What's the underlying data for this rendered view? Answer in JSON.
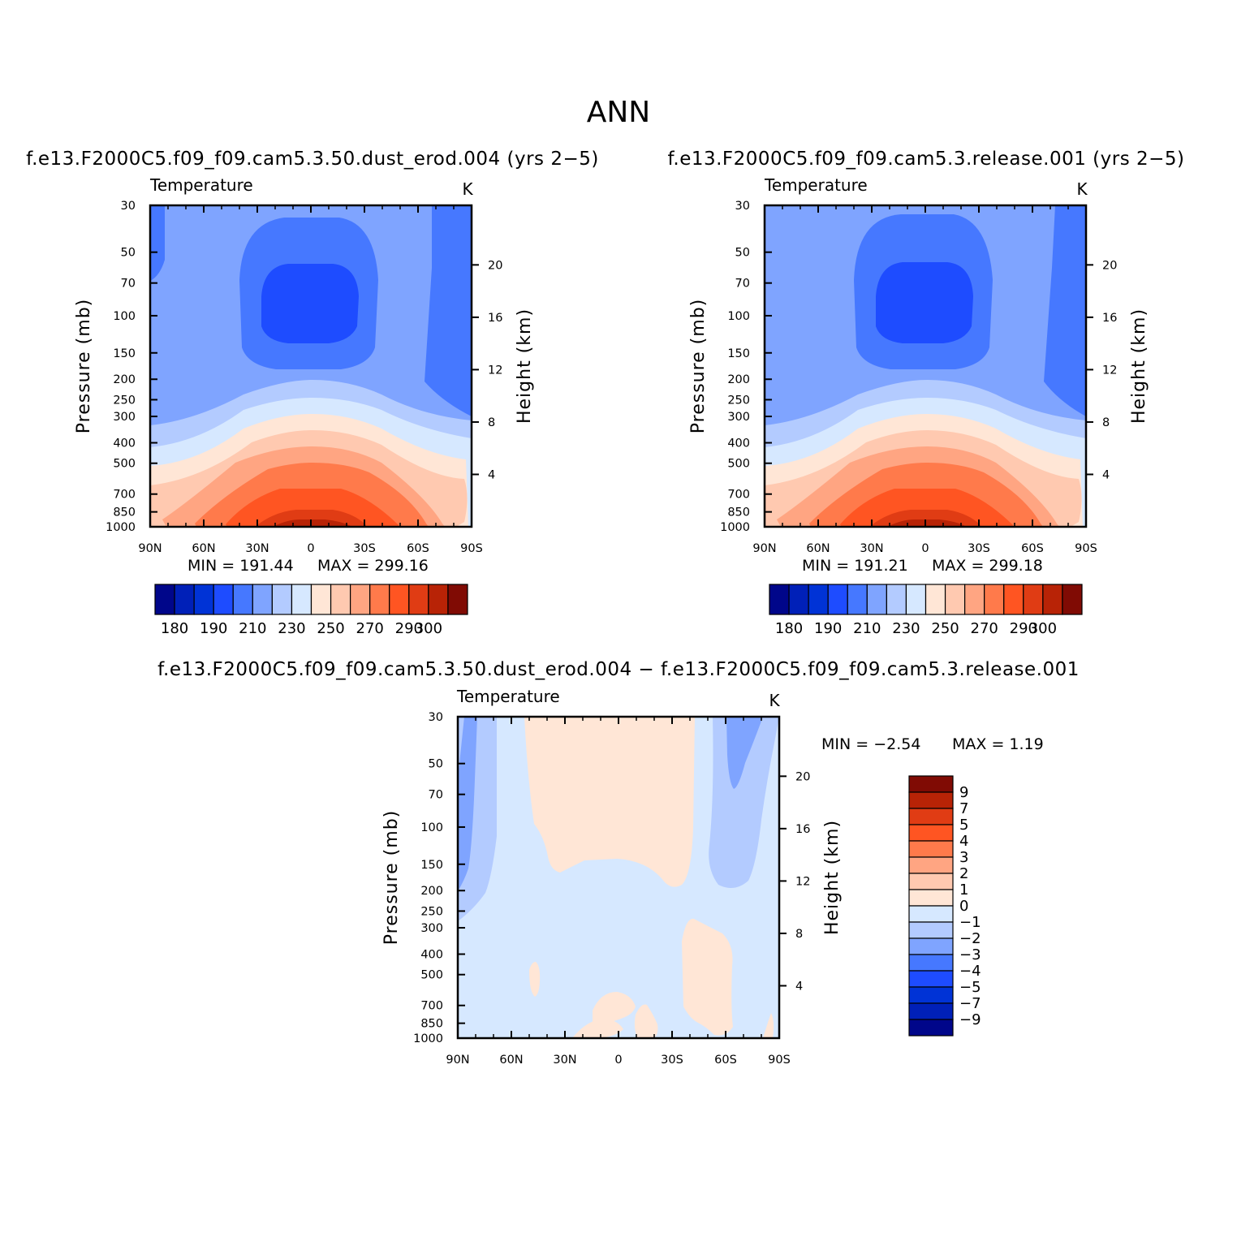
{
  "figure": {
    "title": "ANN",
    "colors": {
      "temperature_levels": [
        "#00068a",
        "#0020b8",
        "#0033d6",
        "#1e4cff",
        "#4678ff",
        "#7fa4ff",
        "#b3cbff",
        "#d6e8ff",
        "#ffe6d6",
        "#ffc9b0",
        "#ffa582",
        "#ff7a4b",
        "#ff5522",
        "#e03c14",
        "#b82306",
        "#800b04"
      ],
      "difference_levels": [
        "#00068a",
        "#0020b8",
        "#0033d6",
        "#1e4cff",
        "#4678ff",
        "#7fa4ff",
        "#b3cbff",
        "#d6e8ff",
        "#ffe6d6",
        "#ffc9b0",
        "#ffa582",
        "#ff7a4b",
        "#ff5522",
        "#e03c14",
        "#b82306",
        "#800b04"
      ]
    }
  },
  "chart_data": [
    {
      "type": "heatmap",
      "panel": "case",
      "subtitle": "f.e13.F2000C5.f09_f09.cam5.3.50.dust_erod.004  (yrs  2−5)",
      "variable": "Temperature",
      "units": "K",
      "ylabel": "Pressure  (mb)",
      "ylabel_right": "Height  (km)",
      "x_tick_labels": [
        "90N",
        "60N",
        "30N",
        "0",
        "30S",
        "60S",
        "90S"
      ],
      "x_ticks_lat": [
        90,
        60,
        30,
        0,
        -30,
        -60,
        -90
      ],
      "y_tick_labels": [
        "30",
        "50",
        "70",
        "100",
        "150",
        "200",
        "250",
        "300",
        "400",
        "500",
        "700",
        "850",
        "1000"
      ],
      "y_ticks_mb": [
        30,
        50,
        70,
        100,
        150,
        200,
        250,
        300,
        400,
        500,
        700,
        850,
        1000
      ],
      "ylim_mb": [
        1000,
        30
      ],
      "y_scale": "log",
      "right_tick_labels": [
        "4",
        "8",
        "12",
        "16",
        "20"
      ],
      "right_ticks_km": [
        4,
        8,
        12,
        16,
        20
      ],
      "min_label": "MIN  =   191.44",
      "max_label": "MAX  =   299.16",
      "min": 191.44,
      "max": 299.16,
      "contour_levels": [
        180,
        185,
        190,
        200,
        210,
        220,
        230,
        240,
        250,
        260,
        270,
        280,
        290,
        295,
        300
      ],
      "colorbar_labels": [
        "180",
        "190",
        "210",
        "230",
        "250",
        "270",
        "290",
        "300"
      ],
      "colorbar_orientation": "horizontal"
    },
    {
      "type": "heatmap",
      "panel": "control",
      "subtitle": "f.e13.F2000C5.f09_f09.cam5.3.release.001  (yrs  2−5)",
      "variable": "Temperature",
      "units": "K",
      "ylabel": "Pressure  (mb)",
      "ylabel_right": "Height  (km)",
      "x_tick_labels": [
        "90N",
        "60N",
        "30N",
        "0",
        "30S",
        "60S",
        "90S"
      ],
      "x_ticks_lat": [
        90,
        60,
        30,
        0,
        -30,
        -60,
        -90
      ],
      "y_tick_labels": [
        "30",
        "50",
        "70",
        "100",
        "150",
        "200",
        "250",
        "300",
        "400",
        "500",
        "700",
        "850",
        "1000"
      ],
      "y_ticks_mb": [
        30,
        50,
        70,
        100,
        150,
        200,
        250,
        300,
        400,
        500,
        700,
        850,
        1000
      ],
      "ylim_mb": [
        1000,
        30
      ],
      "y_scale": "log",
      "right_tick_labels": [
        "4",
        "8",
        "12",
        "16",
        "20"
      ],
      "right_ticks_km": [
        4,
        8,
        12,
        16,
        20
      ],
      "min_label": "MIN  =   191.21",
      "max_label": "MAX  =   299.18",
      "min": 191.21,
      "max": 299.18,
      "contour_levels": [
        180,
        185,
        190,
        200,
        210,
        220,
        230,
        240,
        250,
        260,
        270,
        280,
        290,
        295,
        300
      ],
      "colorbar_labels": [
        "180",
        "190",
        "210",
        "230",
        "250",
        "270",
        "290",
        "300"
      ],
      "colorbar_orientation": "horizontal"
    },
    {
      "type": "heatmap",
      "panel": "difference",
      "subtitle": "f.e13.F2000C5.f09_f09.cam5.3.50.dust_erod.004  −  f.e13.F2000C5.f09_f09.cam5.3.release.001",
      "variable": "Temperature",
      "units": "K",
      "ylabel": "Pressure  (mb)",
      "ylabel_right": "Height  (km)",
      "x_tick_labels": [
        "90N",
        "60N",
        "30N",
        "0",
        "30S",
        "60S",
        "90S"
      ],
      "x_ticks_lat": [
        90,
        60,
        30,
        0,
        -30,
        -60,
        -90
      ],
      "y_tick_labels": [
        "30",
        "50",
        "70",
        "100",
        "150",
        "200",
        "250",
        "300",
        "400",
        "500",
        "700",
        "850",
        "1000"
      ],
      "y_ticks_mb": [
        30,
        50,
        70,
        100,
        150,
        200,
        250,
        300,
        400,
        500,
        700,
        850,
        1000
      ],
      "ylim_mb": [
        1000,
        30
      ],
      "y_scale": "log",
      "right_tick_labels": [
        "4",
        "8",
        "12",
        "16",
        "20"
      ],
      "right_ticks_km": [
        4,
        8,
        12,
        16,
        20
      ],
      "min_label": "MIN  =    −2.54",
      "max_label": "MAX  =     1.19",
      "min": -2.54,
      "max": 1.19,
      "contour_levels": [
        -9,
        -7,
        -5,
        -4,
        -3,
        -2,
        -1,
        0,
        1,
        2,
        3,
        4,
        5,
        7,
        9
      ],
      "colorbar_labels": [
        "9",
        "7",
        "5",
        "4",
        "3",
        "2",
        "1",
        "0",
        "−1",
        "−2",
        "−3",
        "−4",
        "−5",
        "−7",
        "−9"
      ],
      "colorbar_orientation": "vertical"
    }
  ]
}
